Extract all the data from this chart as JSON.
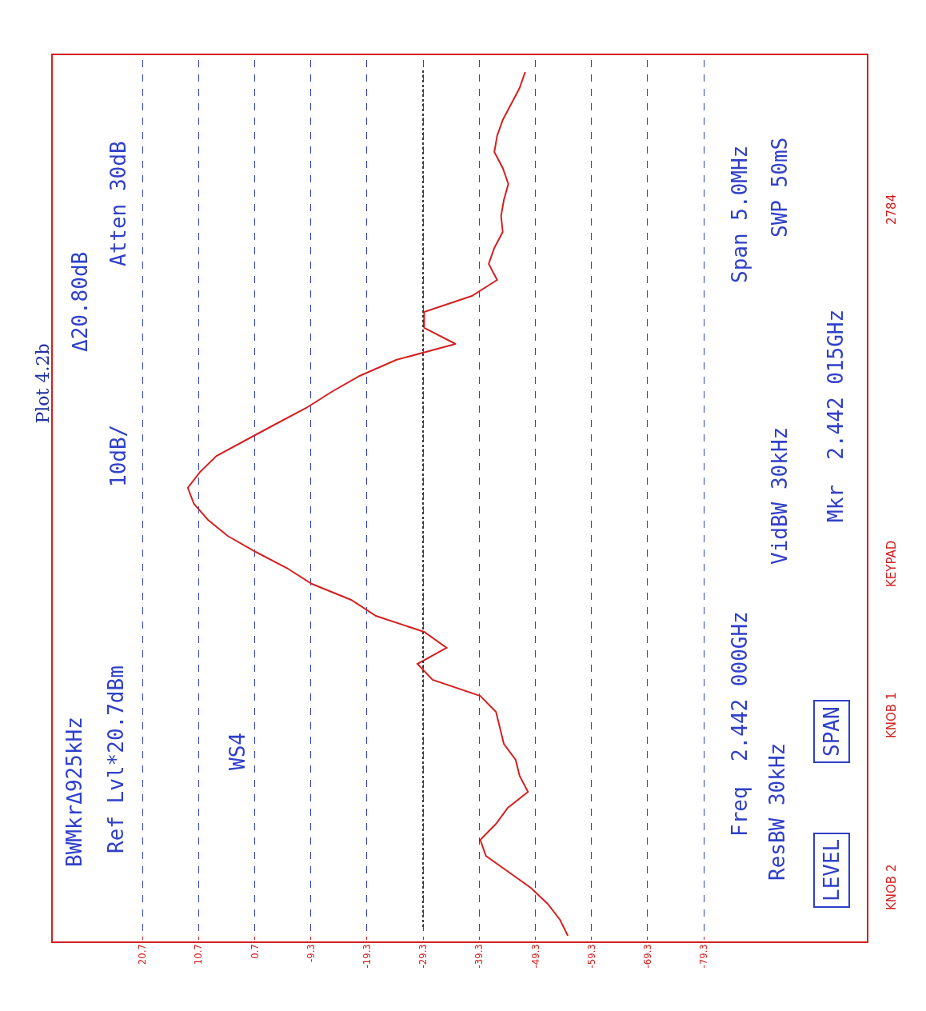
{
  "chart_data": {
    "type": "line",
    "orientation": "horizontal",
    "title": "Plot 4.2b",
    "categories": [
      null,
      null,
      null,
      null,
      null,
      null,
      null,
      null,
      null,
      null,
      null,
      null,
      null,
      null,
      null,
      null,
      null,
      null,
      null,
      null,
      null,
      null,
      null,
      null,
      null,
      null,
      null,
      null,
      null,
      null,
      null,
      null,
      null,
      null,
      null,
      null,
      null,
      null,
      null,
      null,
      null,
      null,
      null,
      null,
      null,
      null,
      null,
      null,
      null,
      null,
      null,
      null,
      null,
      null,
      null
    ],
    "series": [
      {
        "color": "#d42020",
        "values": [
          -47.5,
          -46.5,
          -45,
          -43.5,
          -42.5,
          -42,
          -43.5,
          -44.5,
          -43.7,
          -43.2,
          -43.5,
          -42,
          -41,
          -42.5,
          -38,
          -29.5,
          -29.5,
          -35.1,
          -24.5,
          -18,
          -13,
          -8.5,
          -3.1,
          2.2,
          7.5,
          10.4,
          12.6,
          11.5,
          9,
          5.5,
          0.5,
          -5,
          -9.5,
          -16.5,
          -20.9,
          -29.5,
          -33.5,
          -28.3,
          -31,
          -39.5,
          -42.3,
          -43,
          -43.7,
          -45.8,
          -46.5,
          -48,
          -44.4,
          -42.3,
          -39.5,
          -40.5,
          -44.5,
          -48.5,
          -51.5,
          -53.7,
          -55.1
        ]
      }
    ],
    "xlim": [
      36.8,
      -108.5
    ],
    "xticks": [
      20.7,
      10.7,
      0.7,
      -9.3,
      -19.3,
      -29.3,
      -39.3,
      -49.3,
      -59.3,
      -69.3,
      -79.3
    ],
    "tick_labels": "x",
    "grid": "x",
    "marker": "none",
    "line_style": "solid",
    "ref_lines": [
      {
        "axis": "x",
        "value": -29.3,
        "line_style": "dotted",
        "color": "#333333"
      }
    ],
    "annotations": [
      "BWMkrΔ925kHz",
      "Ref Lvl*20.7dBm",
      "WS4",
      "10dB/",
      "Δ20.80dB",
      "Atten 30dB",
      "Freq  2.442 000GHz",
      "ResBW 30kHz",
      "VidBW 30kHz",
      "Mkr  2.442 015GHz",
      "Span 5.0MHz",
      "SWP 50mS",
      "LEVEL",
      "SPAN",
      "KNOB 2",
      "KNOB 1",
      "KEYPAD",
      "2784"
    ]
  }
}
